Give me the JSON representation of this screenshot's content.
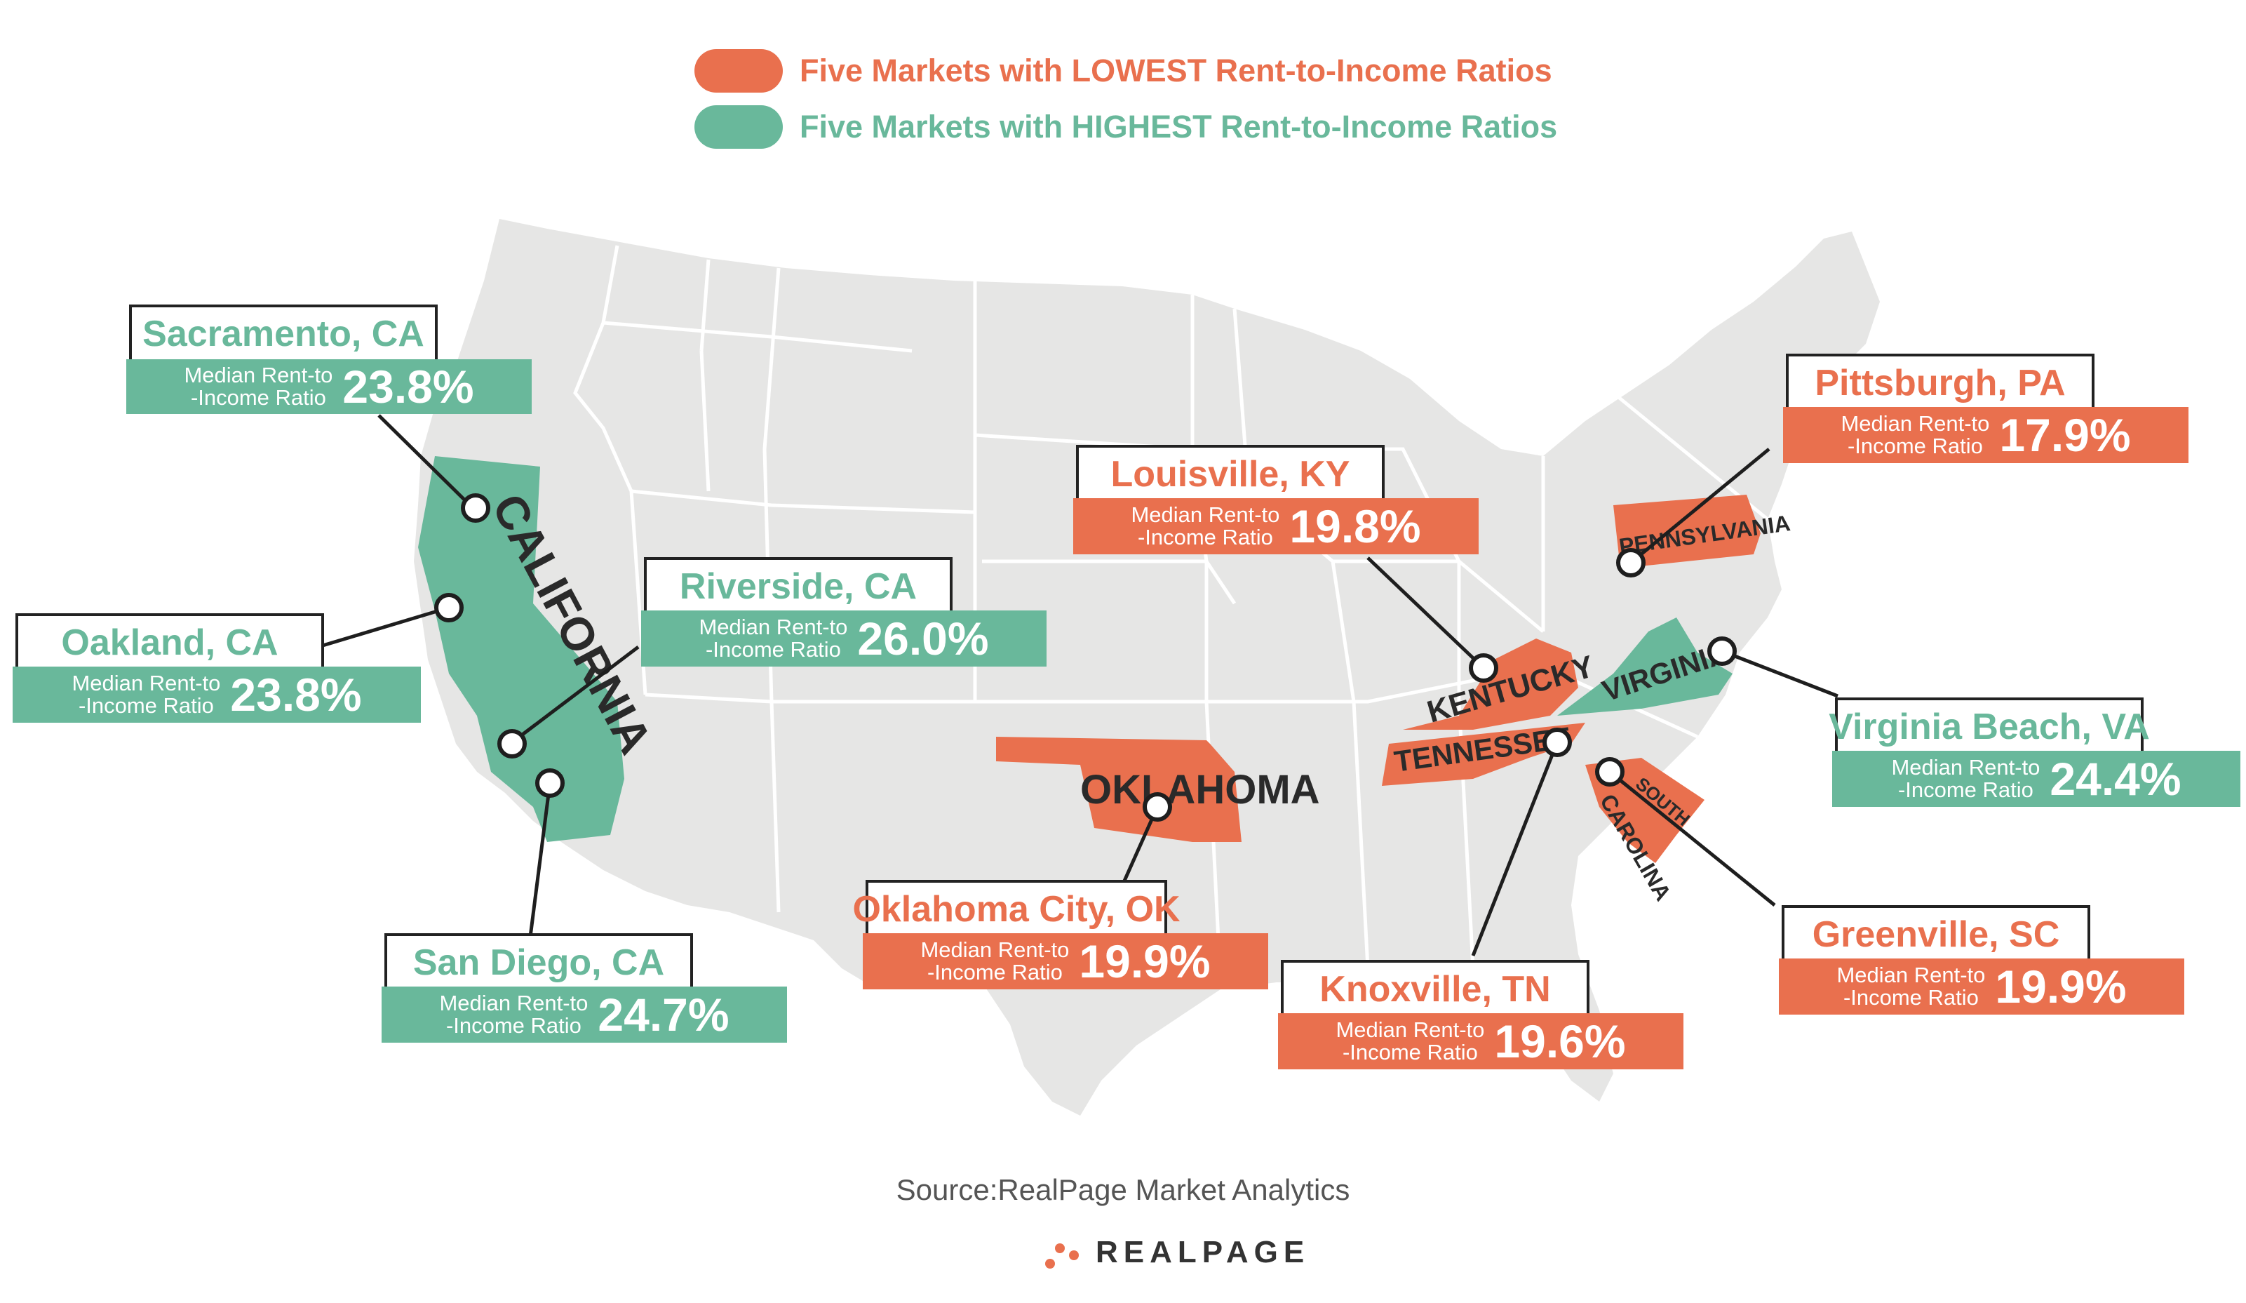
{
  "legend": {
    "lowest": {
      "label": "Five Markets with LOWEST Rent-to-Income Ratios",
      "color": "#e9704e"
    },
    "highest": {
      "label": "Five Markets with HIGHEST Rent-to-Income Ratios",
      "color": "#69b89b"
    }
  },
  "colors": {
    "land": "#e6e6e5",
    "lowest": "#e9704e",
    "highest": "#69b89b",
    "border": "#ffffff",
    "line": "#222222"
  },
  "states": {
    "california": "CALIFORNIA",
    "oklahoma": "OKLAHOMA",
    "kentucky": "KENTUCKY",
    "tennessee": "TENNESSEE",
    "pennsylvania": "PENNSYLVANIA",
    "virginia": "VIRGINIA",
    "south_carolina_1": "SOUTH",
    "south_carolina_2": "CAROLINA"
  },
  "metric_label_line1": "Median Rent-to",
  "metric_label_line2": "-Income Ratio",
  "markets": [
    {
      "name": "Sacramento, CA",
      "value": "23.8%",
      "group": "highest"
    },
    {
      "name": "Oakland, CA",
      "value": "23.8%",
      "group": "highest"
    },
    {
      "name": "Riverside, CA",
      "value": "26.0%",
      "group": "highest"
    },
    {
      "name": "San Diego, CA",
      "value": "24.7%",
      "group": "highest"
    },
    {
      "name": "Virginia Beach, VA",
      "value": "24.4%",
      "group": "highest"
    },
    {
      "name": "Louisville, KY",
      "value": "19.8%",
      "group": "lowest"
    },
    {
      "name": "Pittsburgh, PA",
      "value": "17.9%",
      "group": "lowest"
    },
    {
      "name": "Oklahoma City, OK",
      "value": "19.9%",
      "group": "lowest"
    },
    {
      "name": "Knoxville, TN",
      "value": "19.6%",
      "group": "lowest"
    },
    {
      "name": "Greenville, SC",
      "value": "19.9%",
      "group": "lowest"
    }
  ],
  "source": "Source:RealPage Market Analytics",
  "brand": "REALPAGE"
}
